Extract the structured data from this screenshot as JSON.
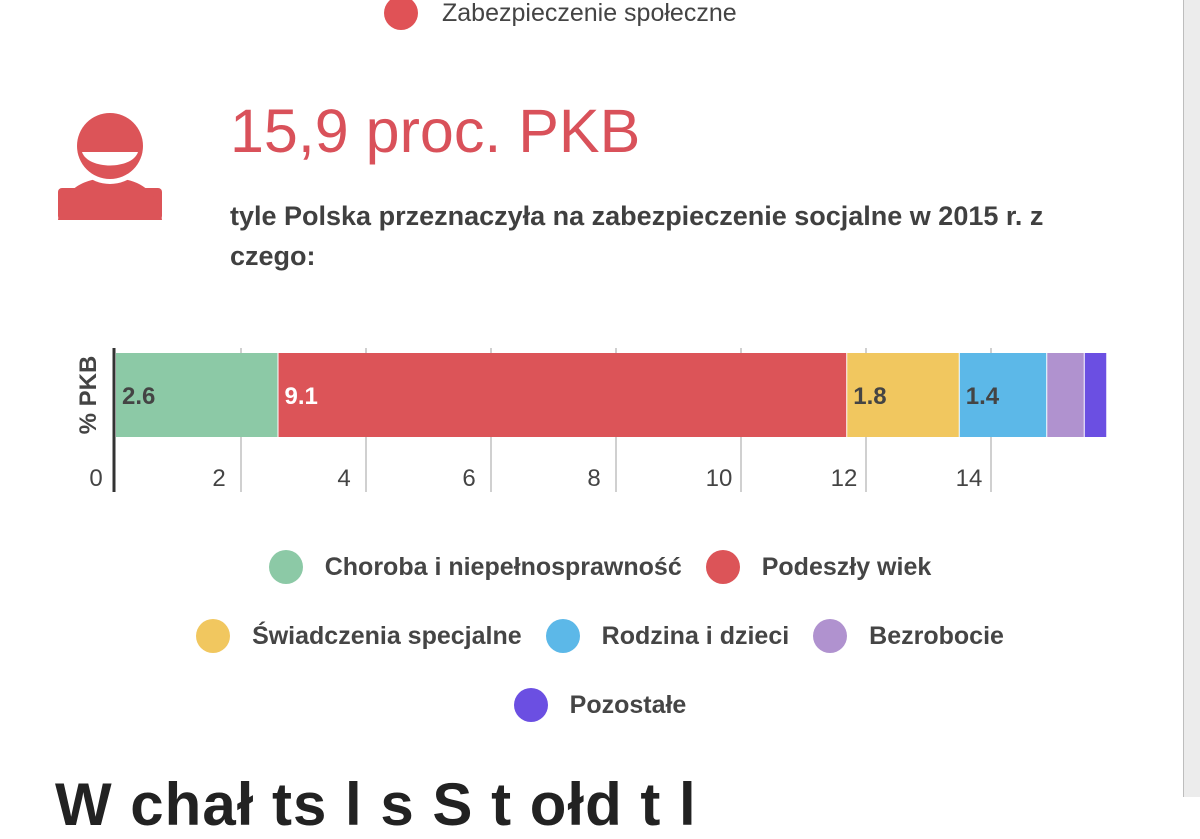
{
  "top_legend": {
    "label": "Zabezpieczenie społeczne",
    "color": "#e05256"
  },
  "headline": "15,9 proc. PKB",
  "subtext": "tyle Polska przeznaczyła na zabezpieczenie socjalne w 2015 r. z czego:",
  "bottom_text": "W chał ts  l  s   S     t    ołd  t     l",
  "chart_data": {
    "type": "bar",
    "orientation": "horizontal",
    "stacked": true,
    "title": "",
    "ylabel": "% PKB",
    "xlim": [
      0,
      16
    ],
    "xticks": [
      0,
      2,
      4,
      6,
      8,
      10,
      12,
      14
    ],
    "series": [
      {
        "name": "Choroba i niepełnosprawność",
        "value": 2.6,
        "color": "#8cc9a6",
        "label": "2.6",
        "label_color": "#444444"
      },
      {
        "name": "Podeszły wiek",
        "value": 9.1,
        "color": "#dc5458",
        "label": "9.1",
        "label_color": "#ffffff"
      },
      {
        "name": "Świadczenia specjalne",
        "value": 1.8,
        "color": "#f1c75f",
        "label": "1.8",
        "label_color": "#444444"
      },
      {
        "name": "Rodzina i dzieci",
        "value": 1.4,
        "color": "#5cb8e8",
        "label": "1.4",
        "label_color": "#444444"
      },
      {
        "name": "Bezrobocie",
        "value": 0.6,
        "color": "#b092cf",
        "label": "",
        "label_color": "#444444"
      },
      {
        "name": "Pozostałe",
        "value": 0.36,
        "color": "#6b4fe2",
        "label": "",
        "label_color": "#444444"
      }
    ],
    "legend_rows": [
      [
        "Choroba i niepełnosprawność",
        "Podeszły wiek"
      ],
      [
        "Świadczenia specjalne",
        "Rodzina i dzieci",
        "Bezrobocie"
      ],
      [
        "Pozostałe"
      ]
    ]
  }
}
